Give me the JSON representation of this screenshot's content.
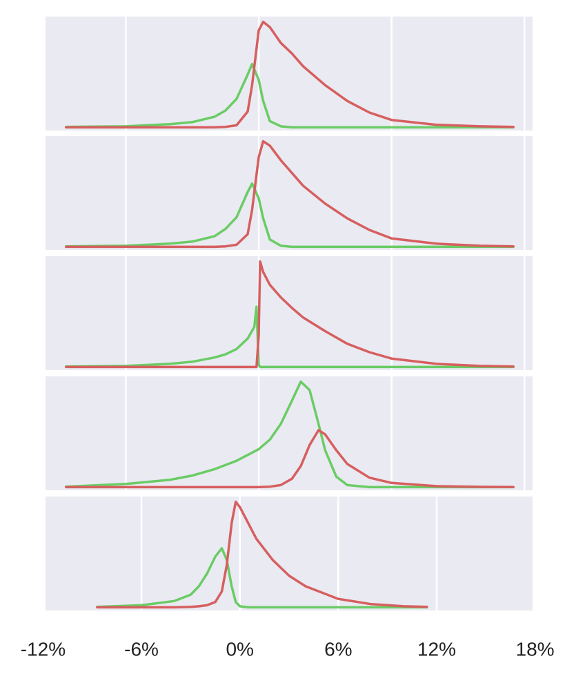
{
  "chart_data": [
    {
      "type": "line",
      "xlim": [
        -9.63,
        12.37
      ],
      "ylim": [
        -0.03,
        1.05
      ],
      "xgrid": [
        -6,
        0,
        6,
        12
      ],
      "grid": true,
      "x": [
        -8.7,
        -6,
        -4,
        -3,
        -2,
        -1.5,
        -1,
        -0.5,
        -0.3,
        0,
        0.2,
        0.5,
        1,
        1.5,
        2,
        3,
        4,
        5,
        6,
        8,
        10,
        11.5
      ],
      "series": [
        {
          "color": "#6acc65",
          "values": [
            0.005,
            0.01,
            0.03,
            0.05,
            0.1,
            0.16,
            0.27,
            0.5,
            0.6,
            0.45,
            0.25,
            0.06,
            0.01,
            0,
            0,
            0,
            0,
            0,
            0,
            0,
            0,
            0
          ]
        },
        {
          "color": "#d65f5f",
          "values": [
            0,
            0,
            0,
            0,
            0,
            0.005,
            0.02,
            0.15,
            0.4,
            0.92,
            1.0,
            0.95,
            0.8,
            0.7,
            0.58,
            0.4,
            0.25,
            0.14,
            0.07,
            0.025,
            0.01,
            0.005
          ]
        }
      ]
    },
    {
      "type": "line",
      "xlim": [
        -9.63,
        12.37
      ],
      "ylim": [
        -0.03,
        1.05
      ],
      "xgrid": [
        -6,
        0,
        6,
        12
      ],
      "grid": true,
      "x": [
        -8.7,
        -6,
        -4,
        -3,
        -2,
        -1.5,
        -1,
        -0.5,
        -0.3,
        0,
        0.2,
        0.5,
        1,
        1.5,
        2,
        3,
        4,
        5,
        6,
        8,
        10,
        11.5
      ],
      "series": [
        {
          "color": "#6acc65",
          "values": [
            0.005,
            0.01,
            0.03,
            0.05,
            0.1,
            0.17,
            0.28,
            0.52,
            0.6,
            0.46,
            0.27,
            0.07,
            0.01,
            0,
            0,
            0,
            0,
            0,
            0,
            0,
            0,
            0
          ]
        },
        {
          "color": "#d65f5f",
          "values": [
            0,
            0,
            0,
            0,
            0,
            0.005,
            0.02,
            0.12,
            0.35,
            0.85,
            1.0,
            0.96,
            0.82,
            0.7,
            0.58,
            0.41,
            0.27,
            0.16,
            0.08,
            0.03,
            0.01,
            0.005
          ]
        }
      ]
    },
    {
      "type": "line",
      "xlim": [
        -9.63,
        12.37
      ],
      "ylim": [
        -0.03,
        1.05
      ],
      "xgrid": [
        -6,
        0,
        6,
        12
      ],
      "grid": true,
      "x": [
        -8.7,
        -6,
        -4,
        -3,
        -2,
        -1.5,
        -1,
        -0.5,
        -0.2,
        -0.1,
        0,
        0.06,
        0.2,
        0.5,
        1,
        1.5,
        2,
        3,
        4,
        5,
        6,
        8,
        10,
        11.5
      ],
      "series": [
        {
          "color": "#6acc65",
          "values": [
            0.005,
            0.01,
            0.03,
            0.05,
            0.09,
            0.12,
            0.17,
            0.27,
            0.38,
            0.57,
            0.02,
            0,
            0,
            0,
            0,
            0,
            0,
            0,
            0,
            0,
            0,
            0,
            0,
            0
          ]
        },
        {
          "color": "#d65f5f",
          "values": [
            0,
            0,
            0,
            0,
            0,
            0,
            0,
            0,
            0,
            0,
            0.3,
            1.0,
            0.9,
            0.78,
            0.66,
            0.56,
            0.47,
            0.34,
            0.22,
            0.14,
            0.08,
            0.03,
            0.01,
            0.005
          ]
        }
      ]
    },
    {
      "type": "line",
      "xlim": [
        -9.63,
        12.37
      ],
      "ylim": [
        -0.03,
        1.05
      ],
      "xgrid": [
        -6,
        0,
        6,
        12
      ],
      "grid": true,
      "x": [
        -8.7,
        -6,
        -4,
        -3,
        -2,
        -1,
        0,
        0.5,
        1,
        1.5,
        1.9,
        2.3,
        2.7,
        3,
        3.5,
        4,
        5,
        6,
        8,
        10,
        11.5
      ],
      "series": [
        {
          "color": "#6acc65",
          "values": [
            0.005,
            0.03,
            0.07,
            0.11,
            0.17,
            0.25,
            0.36,
            0.45,
            0.6,
            0.82,
            1.0,
            0.92,
            0.6,
            0.35,
            0.1,
            0.02,
            0,
            0,
            0,
            0,
            0
          ]
        },
        {
          "color": "#d65f5f",
          "values": [
            0,
            0,
            0,
            0,
            0,
            0,
            0,
            0.005,
            0.02,
            0.08,
            0.2,
            0.4,
            0.54,
            0.5,
            0.35,
            0.22,
            0.09,
            0.04,
            0.01,
            0.003,
            0.001
          ]
        }
      ]
    },
    {
      "type": "line",
      "xlim": [
        -11.85,
        17.85
      ],
      "ylim": [
        -0.03,
        1.05
      ],
      "grid": true,
      "xticks": [
        {
          "value": -12,
          "label": "-12%"
        },
        {
          "value": -6,
          "label": "-6%"
        },
        {
          "value": 0,
          "label": "0%"
        },
        {
          "value": 6,
          "label": "6%"
        },
        {
          "value": 12,
          "label": "12%"
        },
        {
          "value": 18,
          "label": "18%"
        }
      ],
      "x": [
        -8.7,
        -6,
        -4,
        -3,
        -2.5,
        -2,
        -1.5,
        -1.1,
        -0.8,
        -0.5,
        -0.25,
        0,
        0.5,
        1,
        2,
        3,
        4,
        6,
        8,
        10,
        11.4
      ],
      "series": [
        {
          "color": "#6acc65",
          "values": [
            0.005,
            0.02,
            0.06,
            0.12,
            0.2,
            0.32,
            0.48,
            0.56,
            0.45,
            0.2,
            0.05,
            0.01,
            0,
            0,
            0,
            0,
            0,
            0,
            0,
            0,
            0
          ]
        },
        {
          "color": "#d65f5f",
          "values": [
            0,
            0,
            0,
            0.005,
            0.01,
            0.02,
            0.05,
            0.15,
            0.4,
            0.8,
            1.0,
            0.95,
            0.8,
            0.65,
            0.45,
            0.3,
            0.2,
            0.08,
            0.03,
            0.01,
            0.005
          ]
        }
      ]
    }
  ]
}
